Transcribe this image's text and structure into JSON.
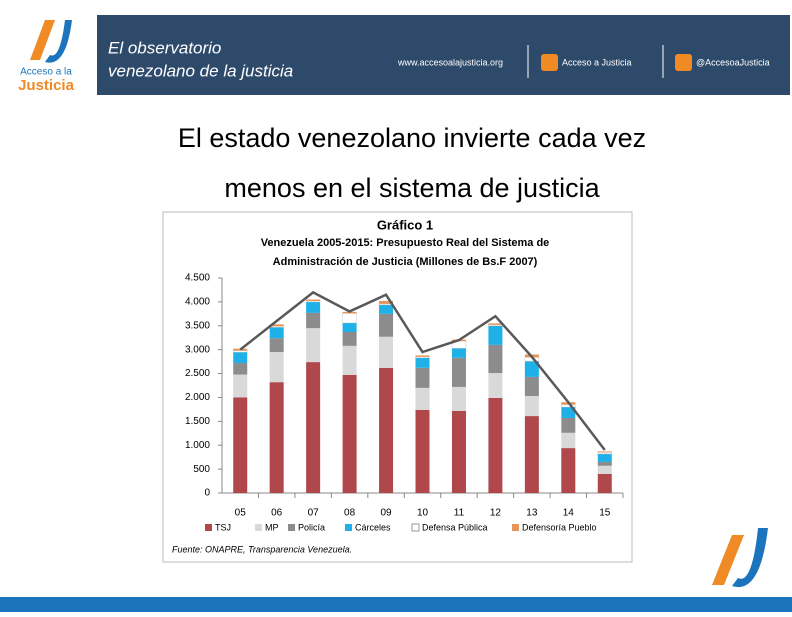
{
  "header": {
    "logo_lines": [
      "Acceso a la",
      "Justicia"
    ],
    "banner_lines": [
      "El observatorio",
      "venezolano de la justicia"
    ],
    "website": "www.accesoalajusticia.org",
    "facebook": "Acceso a Justicia",
    "twitter": "@AccesoaJusticia"
  },
  "slide": {
    "title_lines": [
      "El estado venezolano invierte cada vez",
      "menos en el sistema de justicia"
    ]
  },
  "chart_data": {
    "type": "stacked_bar",
    "title": "Gráfico 1",
    "subtitle_lines": [
      "Venezuela 2005-2015: Presupuesto Real del Sistema de",
      "Administración de Justicia  (Millones de Bs.F 2007)"
    ],
    "categories": [
      "05",
      "06",
      "07",
      "08",
      "09",
      "10",
      "11",
      "12",
      "13",
      "14",
      "15"
    ],
    "series": [
      {
        "name": "TSJ",
        "color": "#b0474a",
        "values": [
          2000,
          2320,
          2740,
          2470,
          2620,
          1740,
          1720,
          1990,
          1610,
          940,
          400
        ]
      },
      {
        "name": "MP",
        "color": "#d9d9d9",
        "values": [
          480,
          630,
          710,
          610,
          650,
          460,
          500,
          520,
          420,
          320,
          170
        ]
      },
      {
        "name": "Policía",
        "color": "#8c8c8c",
        "values": [
          240,
          290,
          320,
          290,
          480,
          420,
          610,
          590,
          400,
          310,
          80
        ]
      },
      {
        "name": "Cárceles",
        "color": "#1fb0e8",
        "values": [
          230,
          230,
          230,
          190,
          190,
          210,
          200,
          400,
          330,
          230,
          170
        ]
      },
      {
        "name": "Defensa Pública",
        "color": "#ffffff",
        "values": [
          30,
          20,
          20,
          200,
          20,
          20,
          150,
          20,
          80,
          50,
          30
        ]
      },
      {
        "name": "Defensoría Pueblo",
        "color": "#e6955a",
        "values": [
          40,
          40,
          30,
          30,
          60,
          30,
          30,
          30,
          60,
          50,
          20
        ]
      }
    ],
    "line_values": [
      3000,
      3600,
      4200,
      3800,
      4150,
      2950,
      3200,
      3700,
      2850,
      1900,
      900
    ],
    "line_color": "#595959",
    "ylim": [
      0,
      4500
    ],
    "yticks": [
      0,
      500,
      {
        "value": 1000,
        "label": "1.000"
      },
      {
        "value": 1500,
        "label": "1.500"
      },
      {
        "value": 2000,
        "label": "2.000"
      },
      {
        "value": 2500,
        "label": "2.500"
      },
      {
        "value": 3000,
        "label": "3.000"
      },
      {
        "value": 3500,
        "label": "3.500"
      },
      {
        "value": 4000,
        "label": "4.000"
      },
      {
        "value": 4500,
        "label": "4.500"
      }
    ],
    "source": "Fuente: ONAPRE, Transparencia Venezuela."
  }
}
